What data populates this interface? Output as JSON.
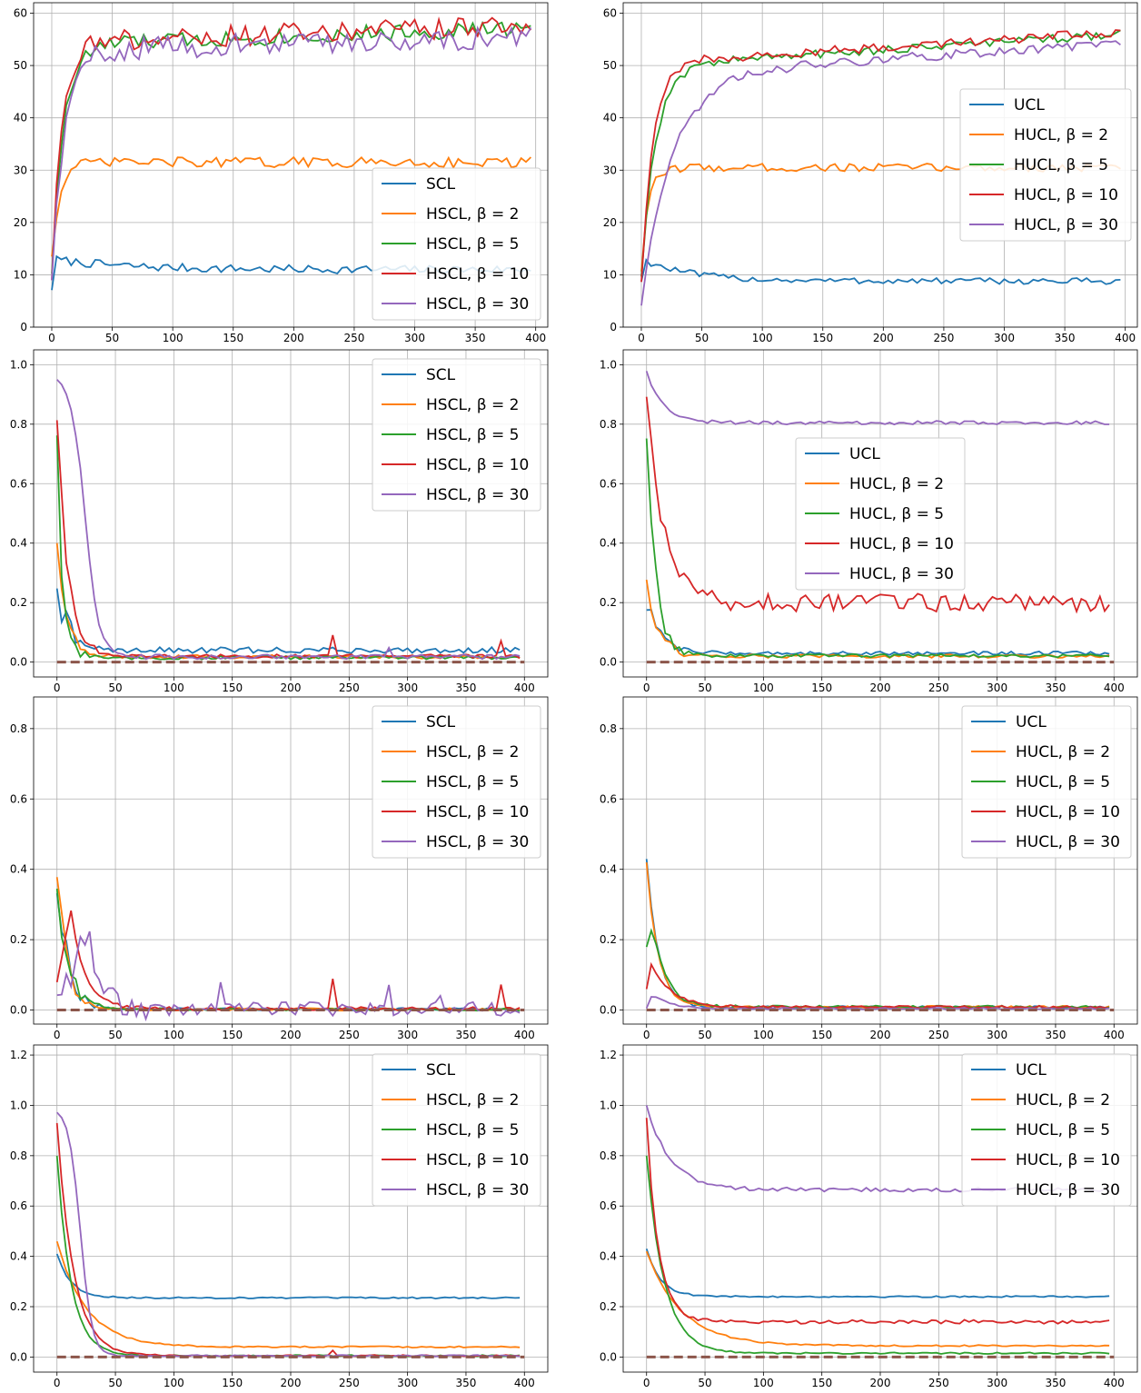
{
  "chart_data": [
    {
      "type": "line",
      "xlim": [
        -15,
        410
      ],
      "ylim": [
        0,
        62
      ],
      "xticks": [
        0,
        50,
        100,
        150,
        200,
        250,
        300,
        350,
        400
      ],
      "yticks": [
        0,
        10,
        20,
        30,
        40,
        50,
        60
      ],
      "legend_position": "lower-right",
      "series": [
        {
          "name": "SCL",
          "color": "#1f77b4",
          "curve": {
            "shape": "plateau",
            "start": 7.5,
            "peak": 13,
            "plateau": 11,
            "noise": 0.8,
            "tau": 60
          }
        },
        {
          "name": "HSCL, β = 2",
          "color": "#ff7f0e",
          "curve": {
            "shape": "rise",
            "start": 14,
            "plateau": 31.5,
            "noise": 1.0,
            "tau": 7
          }
        },
        {
          "name": "HSCL, β = 5",
          "color": "#2ca02c",
          "curve": {
            "shape": "rise",
            "start": 11,
            "plateau": 54,
            "noise": 1.6,
            "tau": 10,
            "slope": 0.008
          }
        },
        {
          "name": "HSCL, β = 10",
          "color": "#d62728",
          "curve": {
            "shape": "rise",
            "start": 10,
            "plateau": 54.5,
            "noise": 2.0,
            "tau": 8,
            "slope": 0.008,
            "spikes": [
              [
                190,
                -12
              ]
            ]
          }
        },
        {
          "name": "HSCL, β = 30",
          "color": "#9467bd",
          "curve": {
            "shape": "rise",
            "start": 10,
            "plateau": 53,
            "noise": 2.2,
            "tau": 11,
            "slope": 0.006
          }
        }
      ]
    },
    {
      "type": "line",
      "xlim": [
        -15,
        410
      ],
      "ylim": [
        0,
        62
      ],
      "xticks": [
        0,
        50,
        100,
        150,
        200,
        250,
        300,
        350,
        400
      ],
      "yticks": [
        0,
        10,
        20,
        30,
        40,
        50,
        60
      ],
      "legend_position": "center-right",
      "series": [
        {
          "name": "UCL",
          "color": "#1f77b4",
          "curve": {
            "shape": "plateau",
            "start": 9,
            "peak": 13,
            "plateau": 8.8,
            "noise": 0.6,
            "tau": 40
          }
        },
        {
          "name": "HUCL, β = 2",
          "color": "#ff7f0e",
          "curve": {
            "shape": "rise",
            "start": 11,
            "plateau": 30.5,
            "noise": 0.8,
            "tau": 6
          }
        },
        {
          "name": "HUCL, β = 5",
          "color": "#2ca02c",
          "curve": {
            "shape": "rise",
            "start": 10,
            "plateau": 50,
            "noise": 0.8,
            "tau": 12,
            "slope": 0.015
          }
        },
        {
          "name": "HUCL, β = 10",
          "color": "#d62728",
          "curve": {
            "shape": "rise",
            "start": 9,
            "plateau": 50.5,
            "noise": 0.9,
            "tau": 10,
            "slope": 0.015
          }
        },
        {
          "name": "HUCL, β = 30",
          "color": "#9467bd",
          "curve": {
            "shape": "rise",
            "start": 4.5,
            "plateau": 48,
            "noise": 0.9,
            "tau": 25,
            "slope": 0.016
          }
        }
      ]
    },
    {
      "type": "line",
      "xlim": [
        -20,
        420
      ],
      "ylim": [
        -0.05,
        1.05
      ],
      "xticks": [
        0,
        50,
        100,
        150,
        200,
        250,
        300,
        350,
        400
      ],
      "yticks": [
        0.0,
        0.2,
        0.4,
        0.6,
        0.8,
        1.0
      ],
      "baseline": 0,
      "legend_position": "upper-right",
      "series": [
        {
          "name": "SCL",
          "color": "#1f77b4",
          "curve": {
            "shape": "decay",
            "start": 0.25,
            "plateau": 0.04,
            "noise": 0.01,
            "tau": 10,
            "burst": 0.07
          }
        },
        {
          "name": "HSCL, β = 2",
          "color": "#ff7f0e",
          "curve": {
            "shape": "decay",
            "start": 0.38,
            "plateau": 0.018,
            "noise": 0.006,
            "tau": 8,
            "burst": 0.06
          }
        },
        {
          "name": "HSCL, β = 5",
          "color": "#2ca02c",
          "curve": {
            "shape": "decay",
            "start": 0.72,
            "plateau": 0.015,
            "noise": 0.006,
            "tau": 5,
            "burst": 0.06
          }
        },
        {
          "name": "HSCL, β = 10",
          "color": "#d62728",
          "curve": {
            "shape": "decay",
            "start": 0.87,
            "plateau": 0.02,
            "noise": 0.006,
            "tau": 9,
            "burst": 0.06,
            "spikes": [
              [
                142,
                0.19
              ],
              [
                237,
                0.15
              ],
              [
                381,
                0.11
              ]
            ]
          }
        },
        {
          "name": "HSCL, β = 30",
          "color": "#9467bd",
          "curve": {
            "shape": "sigmoid",
            "start": 0.97,
            "plateau": 0.018,
            "noise": 0.008,
            "center": 24,
            "width": 6,
            "spikes": [
              [
                166,
                0.12
              ],
              [
                190,
                0.06
              ],
              [
                285,
                0.07
              ]
            ]
          }
        }
      ]
    },
    {
      "type": "line",
      "xlim": [
        -20,
        420
      ],
      "ylim": [
        -0.05,
        1.05
      ],
      "xticks": [
        0,
        50,
        100,
        150,
        200,
        250,
        300,
        350,
        400
      ],
      "yticks": [
        0.0,
        0.2,
        0.4,
        0.6,
        0.8,
        1.0
      ],
      "baseline": 0,
      "legend_position": "center",
      "series": [
        {
          "name": "UCL",
          "color": "#1f77b4",
          "curve": {
            "shape": "decay",
            "start": 0.2,
            "plateau": 0.03,
            "noise": 0.006,
            "tau": 12,
            "burst": 0.06
          }
        },
        {
          "name": "HUCL, β = 2",
          "color": "#ff7f0e",
          "curve": {
            "shape": "decay",
            "start": 0.28,
            "plateau": 0.02,
            "noise": 0.006,
            "tau": 10,
            "burst": 0.05
          }
        },
        {
          "name": "HUCL, β = 5",
          "color": "#2ca02c",
          "curve": {
            "shape": "decay",
            "start": 0.73,
            "plateau": 0.022,
            "noise": 0.006,
            "tau": 8,
            "burst": 0.07
          }
        },
        {
          "name": "HUCL, β = 10",
          "color": "#d62728",
          "curve": {
            "shape": "decay",
            "start": 0.9,
            "plateau": 0.2,
            "noise": 0.03,
            "tau": 14
          }
        },
        {
          "name": "HUCL, β = 30",
          "color": "#9467bd",
          "curve": {
            "shape": "decay",
            "start": 0.98,
            "plateau": 0.805,
            "noise": 0.006,
            "tau": 14
          }
        }
      ]
    },
    {
      "type": "line",
      "xlim": [
        -20,
        420
      ],
      "ylim": [
        -0.04,
        0.89
      ],
      "xticks": [
        0,
        50,
        100,
        150,
        200,
        250,
        300,
        350,
        400
      ],
      "yticks": [
        0.0,
        0.2,
        0.4,
        0.6,
        0.8
      ],
      "baseline": 0,
      "legend_position": "upper-right",
      "series": [
        {
          "name": "SCL",
          "color": "#1f77b4",
          "curve": {
            "shape": "decay",
            "start": 0.38,
            "plateau": 0.002,
            "noise": 0.004,
            "tau": 9,
            "burst": 0.06
          }
        },
        {
          "name": "HSCL, β = 2",
          "color": "#ff7f0e",
          "curve": {
            "shape": "decay",
            "start": 0.4,
            "plateau": 0.002,
            "noise": 0.004,
            "tau": 9,
            "burst": 0.05
          }
        },
        {
          "name": "HSCL, β = 5",
          "color": "#2ca02c",
          "curve": {
            "shape": "decay",
            "start": 0.35,
            "plateau": 0.002,
            "noise": 0.004,
            "tau": 10,
            "burst": 0.06,
            "spikes": [
              [
                254,
                0.06
              ]
            ]
          }
        },
        {
          "name": "HSCL, β = 10",
          "color": "#d62728",
          "curve": {
            "shape": "hump",
            "start": 0.08,
            "peak": 0.28,
            "at": 12,
            "plateau": 0.004,
            "noise": 0.005,
            "tau": 12,
            "spikes": [
              [
                142,
                0.13
              ],
              [
                190,
                0.13
              ],
              [
                237,
                0.17
              ],
              [
                381,
                0.13
              ]
            ]
          }
        },
        {
          "name": "HSCL, β = 30",
          "color": "#9467bd",
          "curve": {
            "shape": "hump",
            "start": 0.02,
            "peak": 0.23,
            "at": 27,
            "plateau": 0.003,
            "noise": 0.02,
            "tau": 12,
            "spikes": [
              [
                140,
                0.08
              ],
              [
                166,
                0.17
              ],
              [
                285,
                0.13
              ],
              [
                328,
                0.05
              ],
              [
                354,
                0.05
              ]
            ]
          }
        }
      ]
    },
    {
      "type": "line",
      "xlim": [
        -20,
        420
      ],
      "ylim": [
        -0.04,
        0.89
      ],
      "xticks": [
        0,
        50,
        100,
        150,
        200,
        250,
        300,
        350,
        400
      ],
      "yticks": [
        0.0,
        0.2,
        0.4,
        0.6,
        0.8
      ],
      "baseline": 0,
      "legend_position": "upper-right",
      "series": [
        {
          "name": "UCL",
          "color": "#1f77b4",
          "curve": {
            "shape": "decay",
            "start": 0.43,
            "plateau": 0.008,
            "noise": 0.004,
            "tau": 10
          }
        },
        {
          "name": "HUCL, β = 2",
          "color": "#ff7f0e",
          "curve": {
            "shape": "decay",
            "start": 0.42,
            "plateau": 0.008,
            "noise": 0.004,
            "tau": 10
          }
        },
        {
          "name": "HUCL, β = 5",
          "color": "#2ca02c",
          "curve": {
            "shape": "hump",
            "start": 0.18,
            "peak": 0.24,
            "at": 5,
            "plateau": 0.008,
            "noise": 0.005,
            "tau": 12
          }
        },
        {
          "name": "HUCL, β = 10",
          "color": "#d62728",
          "curve": {
            "shape": "hump",
            "start": 0.06,
            "peak": 0.13,
            "at": 4,
            "plateau": 0.008,
            "noise": 0.004,
            "tau": 18
          }
        },
        {
          "name": "HUCL, β = 30",
          "color": "#9467bd",
          "curve": {
            "shape": "hump",
            "start": 0.005,
            "peak": 0.045,
            "at": 5,
            "plateau": 0.004,
            "noise": 0.002,
            "tau": 15
          }
        }
      ]
    },
    {
      "type": "line",
      "xlim": [
        -20,
        420
      ],
      "ylim": [
        -0.06,
        1.24
      ],
      "xticks": [
        0,
        50,
        100,
        150,
        200,
        250,
        300,
        350,
        400
      ],
      "yticks": [
        0.0,
        0.2,
        0.4,
        0.6,
        0.8,
        1.0,
        1.2
      ],
      "baseline": 0,
      "legend_position": "upper-right",
      "series": [
        {
          "name": "SCL",
          "color": "#1f77b4",
          "curve": {
            "shape": "decay",
            "start": 0.41,
            "plateau": 0.235,
            "noise": 0.003,
            "tau": 12
          }
        },
        {
          "name": "HSCL, β = 2",
          "color": "#ff7f0e",
          "curve": {
            "shape": "decay",
            "start": 0.46,
            "plateau": 0.04,
            "noise": 0.003,
            "tau": 25
          }
        },
        {
          "name": "HSCL, β = 5",
          "color": "#2ca02c",
          "curve": {
            "shape": "decay",
            "start": 0.8,
            "plateau": 0.005,
            "noise": 0.003,
            "tau": 12
          }
        },
        {
          "name": "HSCL, β = 10",
          "color": "#d62728",
          "curve": {
            "shape": "decay",
            "start": 0.93,
            "plateau": 0.005,
            "noise": 0.003,
            "tau": 14,
            "spikes": [
              [
                142,
                0.07
              ],
              [
                237,
                0.04
              ]
            ]
          }
        },
        {
          "name": "HSCL, β = 30",
          "color": "#9467bd",
          "curve": {
            "shape": "sigmoid",
            "start": 0.99,
            "plateau": 0.005,
            "noise": 0.003,
            "center": 20,
            "width": 5
          }
        }
      ]
    },
    {
      "type": "line",
      "xlim": [
        -20,
        420
      ],
      "ylim": [
        -0.06,
        1.24
      ],
      "xticks": [
        0,
        50,
        100,
        150,
        200,
        250,
        300,
        350,
        400
      ],
      "yticks": [
        0.0,
        0.2,
        0.4,
        0.6,
        0.8,
        1.0,
        1.2
      ],
      "baseline": 0,
      "legend_position": "upper-right",
      "series": [
        {
          "name": "UCL",
          "color": "#1f77b4",
          "curve": {
            "shape": "decay",
            "start": 0.43,
            "plateau": 0.24,
            "noise": 0.003,
            "tau": 12
          }
        },
        {
          "name": "HUCL, β = 2",
          "color": "#ff7f0e",
          "curve": {
            "shape": "decay",
            "start": 0.42,
            "plateau": 0.045,
            "noise": 0.003,
            "tau": 30
          }
        },
        {
          "name": "HUCL, β = 5",
          "color": "#2ca02c",
          "curve": {
            "shape": "decay",
            "start": 0.8,
            "plateau": 0.015,
            "noise": 0.003,
            "tau": 15
          }
        },
        {
          "name": "HUCL, β = 10",
          "color": "#d62728",
          "curve": {
            "shape": "decay",
            "start": 0.95,
            "plateau": 0.14,
            "noise": 0.008,
            "tau": 10
          }
        },
        {
          "name": "HUCL, β = 30",
          "color": "#9467bd",
          "curve": {
            "shape": "decay",
            "start": 1.0,
            "plateau": 0.665,
            "noise": 0.008,
            "tau": 20
          }
        }
      ]
    }
  ]
}
